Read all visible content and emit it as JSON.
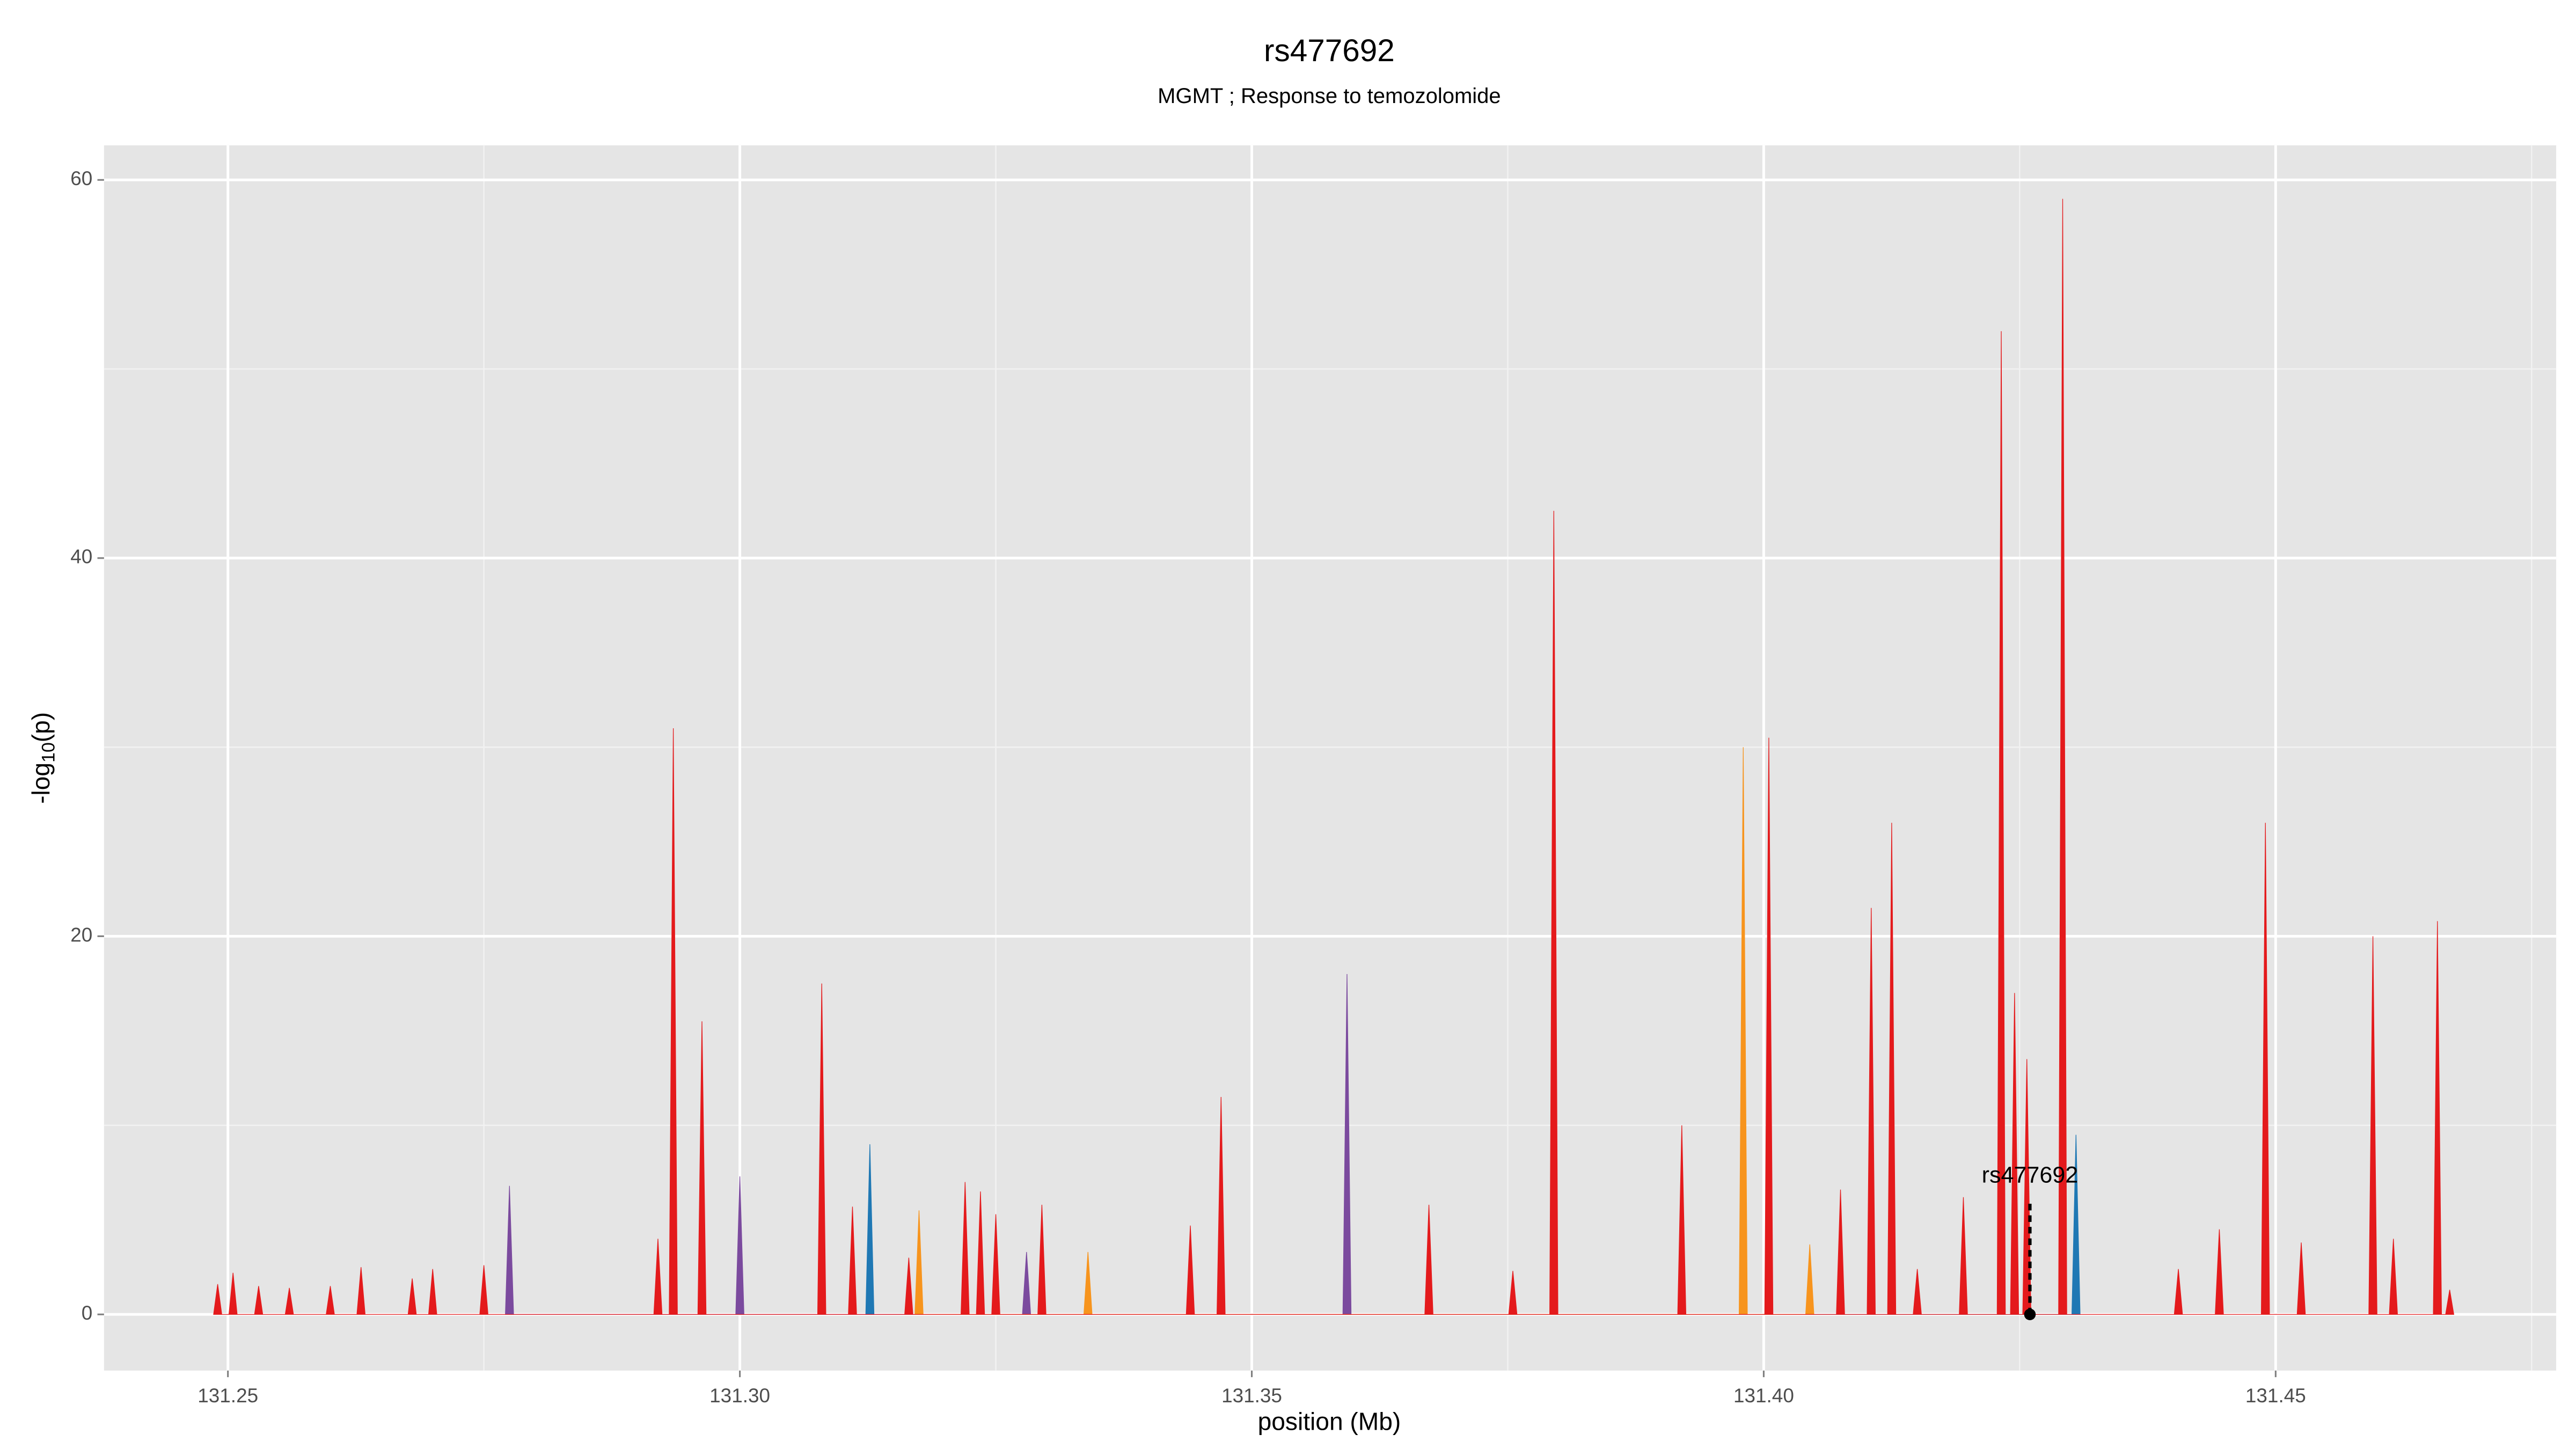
{
  "chart_data": {
    "type": "area",
    "title": "rs477692",
    "subtitle": "MGMT ; Response to temozolomide",
    "xlabel": "position (Mb)",
    "ylabel_parts": [
      "-log",
      "10",
      "(p)"
    ],
    "xlim": [
      131.2379,
      131.4774
    ],
    "ylim": [
      -2.97,
      61.83
    ],
    "xticks": [
      131.25,
      {
        "value": 131.3,
        "label": "131.30"
      },
      131.35,
      {
        "value": 131.4,
        "label": "131.40"
      },
      131.45
    ],
    "yticks": [
      0,
      20,
      40,
      60
    ],
    "x_minor_ticks": [
      131.275,
      131.325,
      131.375,
      131.425,
      131.475
    ],
    "y_minor_ticks": [
      10,
      30,
      50
    ],
    "grid": true,
    "series": [
      {
        "color": "#1f78b4",
        "x": [
          131.3123,
          131.3127,
          131.3131,
          131.4301,
          131.4305,
          131.4309
        ],
        "values": [
          0,
          9,
          0,
          0,
          9.5,
          0
        ]
      },
      {
        "color": "#7b4a9e",
        "x": [
          131.2771,
          131.2775,
          131.2779,
          131.2996,
          131.3,
          131.3004,
          131.3276,
          131.328,
          131.3284,
          131.3589,
          131.3593,
          131.3597
        ],
        "values": [
          0,
          6.8,
          0,
          0,
          7.3,
          0,
          0,
          3.3,
          0,
          0,
          18,
          0
        ]
      },
      {
        "color": "#f7941d",
        "x": [
          131.3171,
          131.3175,
          131.3179,
          131.3336,
          131.334,
          131.3344,
          131.3976,
          131.398,
          131.3984,
          131.4041,
          131.4045,
          131.4049
        ],
        "values": [
          0,
          5.5,
          0,
          0,
          3.3,
          0,
          0,
          30,
          0,
          0,
          3.7,
          0
        ]
      },
      {
        "color": "#e41a1c",
        "x": [
          131.2486,
          131.249,
          131.2494,
          131.2501,
          131.2505,
          131.2509,
          131.2526,
          131.253,
          131.2534,
          131.2556,
          131.256,
          131.2564,
          131.2596,
          131.26,
          131.2604,
          131.2626,
          131.263,
          131.2634,
          131.2676,
          131.268,
          131.2684,
          131.2696,
          131.27,
          131.2704,
          131.2746,
          131.275,
          131.2754,
          131.2916,
          131.292,
          131.2924,
          131.2931,
          131.2935,
          131.2939,
          131.2959,
          131.2963,
          131.2967,
          131.3076,
          131.308,
          131.3084,
          131.3106,
          131.311,
          131.3114,
          131.3161,
          131.3165,
          131.3169,
          131.3216,
          131.322,
          131.3224,
          131.3231,
          131.3235,
          131.3239,
          131.3246,
          131.325,
          131.3254,
          131.3291,
          131.3295,
          131.3299,
          131.3436,
          131.344,
          131.3444,
          131.3466,
          131.347,
          131.3474,
          131.3669,
          131.3673,
          131.3677,
          131.3751,
          131.3755,
          131.3759,
          131.3791,
          131.3795,
          131.3799,
          131.3916,
          131.392,
          131.3924,
          131.4001,
          131.4005,
          131.4009,
          131.4071,
          131.4075,
          131.4079,
          131.4101,
          131.4105,
          131.4109,
          131.4121,
          131.4125,
          131.4129,
          131.4146,
          131.415,
          131.4154,
          131.4191,
          131.4195,
          131.4199,
          131.4228,
          131.4232,
          131.4236,
          131.4241,
          131.4245,
          131.4249,
          131.4253,
          131.4257,
          131.4261,
          131.4288,
          131.4292,
          131.4296,
          131.4401,
          131.4405,
          131.4409,
          131.4441,
          131.4445,
          131.4449,
          131.4486,
          131.449,
          131.4494,
          131.4521,
          131.4525,
          131.4529,
          131.4591,
          131.4595,
          131.4599,
          131.4611,
          131.4615,
          131.4619,
          131.4654,
          131.4658,
          131.4662,
          131.4666,
          131.467,
          131.4674
        ],
        "values": [
          0,
          1.6,
          0,
          0,
          2.2,
          0,
          0,
          1.5,
          0,
          0,
          1.4,
          0,
          0,
          1.5,
          0,
          0,
          2.5,
          0,
          0,
          1.9,
          0,
          0,
          2.4,
          0,
          0,
          2.6,
          0,
          0,
          4,
          0,
          0,
          31,
          0,
          0,
          15.5,
          0,
          0,
          17.5,
          0,
          0,
          5.7,
          0,
          0,
          3,
          0,
          0,
          7,
          0,
          0,
          6.5,
          0,
          0,
          5.3,
          0,
          0,
          5.8,
          0,
          0,
          4.7,
          0,
          0,
          11.5,
          0,
          0,
          5.8,
          0,
          0,
          2.3,
          0,
          0,
          42.5,
          0,
          0,
          10,
          0,
          0,
          30.5,
          0,
          0,
          6.6,
          0,
          0,
          21.5,
          0,
          0,
          26,
          0,
          0,
          2.4,
          0,
          0,
          6.2,
          0,
          0,
          52,
          0,
          0,
          17,
          0,
          0,
          13.5,
          0,
          0,
          59,
          0,
          0,
          2.4,
          0,
          0,
          4.5,
          0,
          0,
          26,
          0,
          0,
          3.8,
          0,
          0,
          20,
          0,
          0,
          4,
          0,
          0,
          20.8,
          0,
          0,
          1.3,
          0
        ]
      }
    ],
    "annotation": {
      "label": "rs477692",
      "x": 131.426,
      "y": 0,
      "line_top": 5.9,
      "label_y": 7.3
    }
  }
}
